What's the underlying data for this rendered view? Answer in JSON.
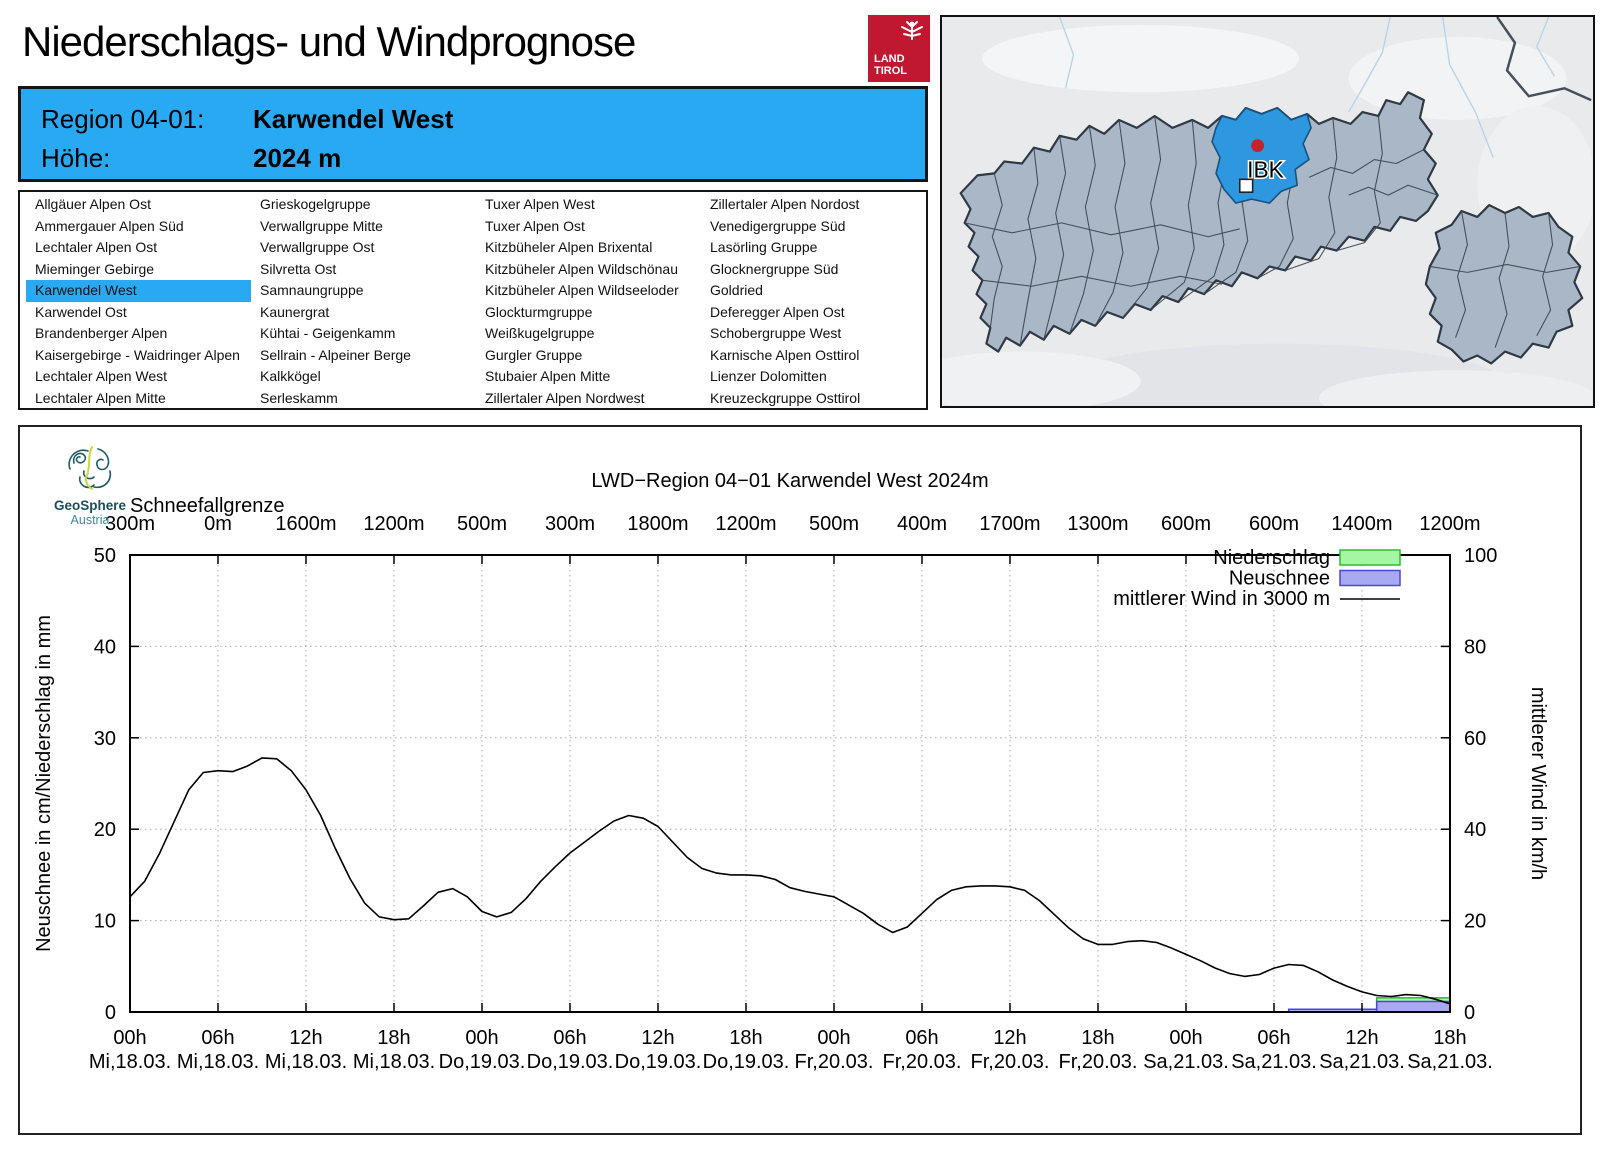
{
  "page": {
    "title": "Niederschlags- und Windprognose"
  },
  "logo_landtirol": {
    "line1": "LAND",
    "line2": "TIROL",
    "bg_color": "#C01830"
  },
  "branding_geosphere": {
    "name": "GeoSphere",
    "sub": "Austria"
  },
  "region_header": {
    "bg_color": "#29A9F1",
    "region_label": "Region 04-01:",
    "region_value": "Karwendel West",
    "height_label": "Höhe:",
    "height_value": "2024 m"
  },
  "map": {
    "marker_label": "IBK",
    "highlight_color": "#2D97DF"
  },
  "region_list": {
    "selected_col": 0,
    "selected_row": 4,
    "selected_label": "Karwendel West",
    "columns": [
      [
        "Allgäuer Alpen Ost",
        "Ammergauer Alpen Süd",
        "Lechtaler Alpen Ost",
        "Mieminger Gebirge",
        "Karwendel West",
        "Karwendel Ost",
        "Brandenberger Alpen",
        "Kaisergebirge - Waidringer Alpen",
        "Lechtaler Alpen West",
        "Lechtaler Alpen Mitte"
      ],
      [
        "Grieskogelgruppe",
        "Verwallgruppe Mitte",
        "Verwallgruppe Ost",
        "Silvretta Ost",
        "Samnaungruppe",
        "Kaunergrat",
        "Kühtai - Geigenkamm",
        "Sellrain - Alpeiner Berge",
        "Kalkkögel",
        "Serleskamm"
      ],
      [
        "Tuxer Alpen West",
        "Tuxer Alpen Ost",
        "Kitzbüheler Alpen Brixental",
        "Kitzbüheler Alpen Wildschönau",
        "Kitzbüheler Alpen Wildseeloder",
        "Glockturmgruppe",
        "Weißkugelgruppe",
        "Gurgler Gruppe",
        "Stubaier Alpen Mitte",
        "Zillertaler Alpen Nordwest"
      ],
      [
        "Zillertaler Alpen Nordost",
        "Venedigergruppe Süd",
        "Lasörling Gruppe",
        "Glocknergruppe Süd",
        "Goldried",
        "Deferegger Alpen Ost",
        "Schobergruppe West",
        "Karnische Alpen Osttirol",
        "Lienzer Dolomitten",
        "Kreuzeckgruppe Osttirol"
      ]
    ]
  },
  "chart_data": {
    "type": "line",
    "title": "LWD−Region 04−01 Karwendel West 2024m",
    "snowline_label": "Schneefallgrenze",
    "snowline_labels": [
      "300m",
      "0m",
      "1600m",
      "1200m",
      "500m",
      "300m",
      "1800m",
      "1200m",
      "500m",
      "400m",
      "1700m",
      "1300m",
      "600m",
      "600m",
      "1400m",
      "1200m"
    ],
    "snowline_m": [
      300,
      0,
      1600,
      1200,
      500,
      300,
      1800,
      1200,
      500,
      400,
      1700,
      1300,
      600,
      600,
      1400,
      1200
    ],
    "ylabel_left": "Neuschnee in cm/Niederschlag in mm",
    "ylabel_right": "mittlerer Wind in km/h",
    "ylim_left": [
      0,
      50
    ],
    "ylim_right": [
      0,
      100
    ],
    "y_left_ticks": [
      0,
      10,
      20,
      30,
      40,
      50
    ],
    "y_right_ticks": [
      0,
      20,
      40,
      60,
      80,
      100
    ],
    "x_range_hours": [
      0,
      90
    ],
    "tick_interval_hours": 6,
    "x_hour_labels": [
      "00h",
      "06h",
      "12h",
      "18h",
      "00h",
      "06h",
      "12h",
      "18h",
      "00h",
      "06h",
      "12h",
      "18h",
      "00h",
      "06h",
      "12h",
      "18h"
    ],
    "x_date_labels": [
      "Mi,18.03.",
      "Mi,18.03.",
      "Mi,18.03.",
      "Mi,18.03.",
      "Do,19.03.",
      "Do,19.03.",
      "Do,19.03.",
      "Do,19.03.",
      "Fr,20.03.",
      "Fr,20.03.",
      "Fr,20.03.",
      "Fr,20.03.",
      "Sa,21.03.",
      "Sa,21.03.",
      "Sa,21.03.",
      "Sa,21.03."
    ],
    "legend": [
      {
        "label": "Niederschlag",
        "type": "box",
        "fill": "#A4F6A4",
        "stroke": "#2DBE2D"
      },
      {
        "label": "Neuschnee",
        "type": "box",
        "fill": "#A9A9F3",
        "stroke": "#4848D0"
      },
      {
        "label": "mittlerer Wind in 3000 m",
        "type": "line",
        "stroke": "#000000"
      }
    ],
    "wind_series": {
      "name": "mittlerer Wind in 3000 m",
      "axis": "right",
      "unit": "km/h",
      "x_start_hour": 0,
      "x_step_hours": 1,
      "values_kmh": [
        25.2,
        28.6,
        34.6,
        41.6,
        48.6,
        52.4,
        52.8,
        52.6,
        53.8,
        55.6,
        55.4,
        52.8,
        48.6,
        43.0,
        35.8,
        29.2,
        23.8,
        20.8,
        20.2,
        20.4,
        23.2,
        26.2,
        27.0,
        25.2,
        22.0,
        20.8,
        21.8,
        24.8,
        28.6,
        31.8,
        34.8,
        37.2,
        39.6,
        41.8,
        43.0,
        42.4,
        40.6,
        37.2,
        33.8,
        31.4,
        30.4,
        30.0,
        30.0,
        29.8,
        29.0,
        27.2,
        26.4,
        25.8,
        25.2,
        23.4,
        21.6,
        19.2,
        17.4,
        18.6,
        21.6,
        24.6,
        26.6,
        27.4,
        27.6,
        27.6,
        27.4,
        26.6,
        24.4,
        21.4,
        18.4,
        16.0,
        14.8,
        14.8,
        15.4,
        15.6,
        15.2,
        14.0,
        12.6,
        11.2,
        9.6,
        8.4,
        7.8,
        8.2,
        9.6,
        10.4,
        10.2,
        8.8,
        7.0,
        5.6,
        4.4,
        3.6,
        3.4,
        3.8,
        3.6,
        2.8,
        1.8
      ]
    },
    "bars": {
      "niederschlag_mm": [
        {
          "from_h": 85,
          "to_h": 90,
          "value": 1.55
        }
      ],
      "neuschnee_cm": [
        {
          "from_h": 79,
          "to_h": 85,
          "value": 0.3
        },
        {
          "from_h": 85,
          "to_h": 90,
          "value": 1.15
        }
      ]
    }
  }
}
